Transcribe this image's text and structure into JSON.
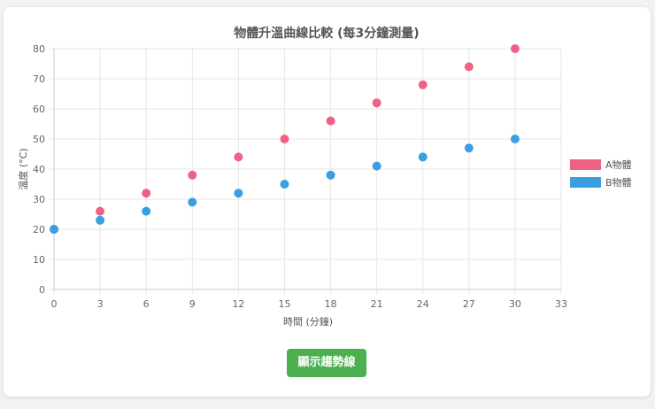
{
  "colors": {
    "series_a": "#f06285",
    "series_b": "#3a9ee0",
    "button": "#4caf50",
    "grid": "#e6e6e6"
  },
  "button": {
    "label": "顯示趨勢線"
  },
  "chart_data": {
    "type": "scatter",
    "title": "物體升溫曲線比較 (每3分鐘測量)",
    "xlabel": "時間 (分鐘)",
    "ylabel": "溫度 (°C)",
    "xlim": [
      0,
      33
    ],
    "ylim": [
      0,
      80
    ],
    "xticks": [
      0,
      3,
      6,
      9,
      12,
      15,
      18,
      21,
      24,
      27,
      30,
      33
    ],
    "yticks": [
      0,
      10,
      20,
      30,
      40,
      50,
      60,
      70,
      80
    ],
    "grid": true,
    "legend_position": "right",
    "series": [
      {
        "name": "A物體",
        "color": "#f06285",
        "x": [
          0,
          3,
          6,
          9,
          12,
          15,
          18,
          21,
          24,
          27,
          30
        ],
        "y": [
          20,
          26,
          32,
          38,
          44,
          50,
          56,
          62,
          68,
          74,
          80
        ]
      },
      {
        "name": "B物體",
        "color": "#3a9ee0",
        "x": [
          0,
          3,
          6,
          9,
          12,
          15,
          18,
          21,
          24,
          27,
          30
        ],
        "y": [
          20,
          23,
          26,
          29,
          32,
          35,
          38,
          41,
          44,
          47,
          50
        ]
      }
    ]
  }
}
